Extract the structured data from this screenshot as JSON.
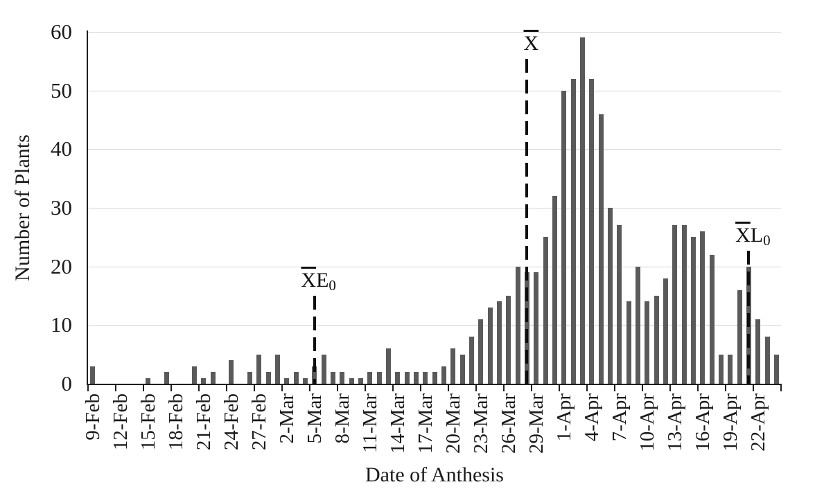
{
  "chart_data": {
    "type": "bar",
    "title": "",
    "xlabel": "Date of Anthesis",
    "ylabel": "Number of Plants",
    "bar_color": "#5a5a5a",
    "grid": "horizontal-only",
    "legend": "none",
    "ylim": [
      0,
      60
    ],
    "y_ticks": [
      0,
      10,
      20,
      30,
      40,
      50,
      60
    ],
    "x_tick_labels": [
      "9-Feb",
      "12-Feb",
      "15-Feb",
      "18-Feb",
      "21-Feb",
      "24-Feb",
      "27-Feb",
      "2-Mar",
      "5-Mar",
      "8-Mar",
      "11-Mar",
      "14-Mar",
      "17-Mar",
      "20-Mar",
      "23-Mar",
      "26-Mar",
      "29-Mar",
      "1-Apr",
      "4-Apr",
      "7-Apr",
      "10-Apr",
      "13-Apr",
      "16-Apr",
      "19-Apr",
      "22-Apr"
    ],
    "x_tick_label_interval": 3,
    "categories": [
      "9-Feb",
      "10-Feb",
      "11-Feb",
      "12-Feb",
      "13-Feb",
      "14-Feb",
      "15-Feb",
      "16-Feb",
      "17-Feb",
      "18-Feb",
      "19-Feb",
      "20-Feb",
      "21-Feb",
      "22-Feb",
      "23-Feb",
      "24-Feb",
      "25-Feb",
      "26-Feb",
      "27-Feb",
      "28-Feb",
      "1-Mar",
      "2-Mar",
      "3-Mar",
      "4-Mar",
      "5-Mar",
      "6-Mar",
      "7-Mar",
      "8-Mar",
      "9-Mar",
      "10-Mar",
      "11-Mar",
      "12-Mar",
      "13-Mar",
      "14-Mar",
      "15-Mar",
      "16-Mar",
      "17-Mar",
      "18-Mar",
      "19-Mar",
      "20-Mar",
      "21-Mar",
      "22-Mar",
      "23-Mar",
      "24-Mar",
      "25-Mar",
      "26-Mar",
      "27-Mar",
      "28-Mar",
      "29-Mar",
      "30-Mar",
      "31-Mar",
      "1-Apr",
      "2-Apr",
      "3-Apr",
      "4-Apr",
      "5-Apr",
      "6-Apr",
      "7-Apr",
      "8-Apr",
      "9-Apr",
      "10-Apr",
      "11-Apr",
      "12-Apr",
      "13-Apr",
      "14-Apr",
      "15-Apr",
      "16-Apr",
      "17-Apr",
      "18-Apr",
      "19-Apr",
      "20-Apr",
      "21-Apr",
      "22-Apr",
      "23-Apr",
      "24-Apr"
    ],
    "values": [
      3,
      0,
      0,
      0,
      0,
      0,
      1,
      0,
      2,
      0,
      0,
      3,
      1,
      2,
      0,
      4,
      0,
      2,
      5,
      2,
      5,
      1,
      2,
      1,
      3,
      5,
      2,
      2,
      1,
      1,
      2,
      2,
      6,
      2,
      2,
      2,
      2,
      2,
      3,
      6,
      5,
      8,
      11,
      13,
      14,
      15,
      20,
      19,
      19,
      25,
      32,
      50,
      52,
      59,
      52,
      46,
      30,
      27,
      14,
      20,
      14,
      15,
      18,
      27,
      27,
      25,
      26,
      22,
      5,
      5,
      16,
      20,
      11,
      8,
      5
    ],
    "annotations": [
      {
        "id": "mean-early",
        "text_overline": "X",
        "text_rest": "E",
        "text_sub": "0",
        "display_text": "X̄E₀",
        "date": "5-Mar",
        "cat_index": 24,
        "line_top_value": 15,
        "line_style": "dashed"
      },
      {
        "id": "mean",
        "text_overline": "X",
        "text_rest": "",
        "text_sub": "",
        "display_text": "X̄",
        "date": "28-Mar",
        "cat_index": 47,
        "line_top_value": 55.4,
        "line_style": "dashed"
      },
      {
        "id": "mean-late",
        "text_overline": "X",
        "text_rest": "L",
        "text_sub": "0",
        "display_text": "X̄L₀",
        "date": "21-Apr",
        "cat_index": 71,
        "line_top_value": 22.7,
        "line_style": "dashed"
      }
    ]
  }
}
